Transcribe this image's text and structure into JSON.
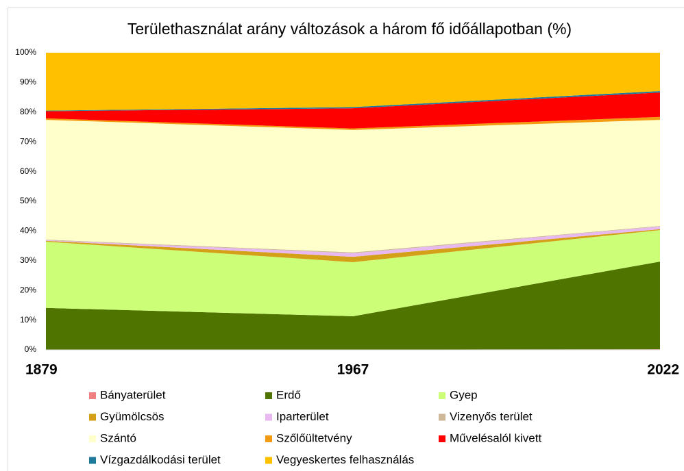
{
  "chart_data": {
    "type": "stacked_area",
    "title": "Területhasználat arány változások a három fő időállapotban (%)",
    "categories": [
      "1879",
      "1967",
      "2022"
    ],
    "ylim": [
      0,
      100
    ],
    "yticks": [
      {
        "value": 0,
        "label": "0%"
      },
      {
        "value": 10,
        "label": "10%"
      },
      {
        "value": 20,
        "label": "20%"
      },
      {
        "value": 30,
        "label": "30%"
      },
      {
        "value": 40,
        "label": "40%"
      },
      {
        "value": 50,
        "label": "50%"
      },
      {
        "value": 60,
        "label": "60%"
      },
      {
        "value": 70,
        "label": "70%"
      },
      {
        "value": 80,
        "label": "80%"
      },
      {
        "value": 90,
        "label": "90%"
      },
      {
        "value": 100,
        "label": "100%"
      }
    ],
    "series": [
      {
        "name": "Bányaterület",
        "color": "#f08080",
        "values": [
          0.1,
          0.1,
          0.2
        ]
      },
      {
        "name": "Erdő",
        "color": "#4f7400",
        "values": [
          14.0,
          11.2,
          29.5
        ]
      },
      {
        "name": "Gyep",
        "color": "#ccff77",
        "values": [
          22.3,
          18.2,
          10.6
        ]
      },
      {
        "name": "Gyümölcsös",
        "color": "#d4a017",
        "values": [
          0.3,
          1.8,
          0.3
        ]
      },
      {
        "name": "Iparterület",
        "color": "#e8b8f0",
        "values": [
          0.2,
          1.2,
          0.9
        ]
      },
      {
        "name": "Vizenyős terület",
        "color": "#cdb99a",
        "values": [
          0.2,
          0.3,
          0.2
        ]
      },
      {
        "name": "Szántó",
        "color": "#ffffcc",
        "values": [
          40.3,
          41.2,
          35.7
        ]
      },
      {
        "name": "Szőlőültetvény",
        "color": "#f39c12",
        "values": [
          0.5,
          0.5,
          1.0
        ]
      },
      {
        "name": "Művelésalól kivett",
        "color": "#ff0000",
        "values": [
          2.4,
          6.8,
          8.2
        ]
      },
      {
        "name": "Vízgazdálkodási terület",
        "color": "#1f7a9c",
        "values": [
          0.2,
          0.4,
          0.5
        ]
      },
      {
        "name": "Vegyeskertes felhasználás",
        "color": "#ffc000",
        "values": [
          19.5,
          18.3,
          12.9
        ]
      }
    ]
  }
}
